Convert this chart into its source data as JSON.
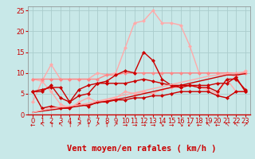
{
  "x": [
    0,
    1,
    2,
    3,
    4,
    5,
    6,
    7,
    8,
    9,
    10,
    11,
    12,
    13,
    14,
    15,
    16,
    17,
    18,
    19,
    20,
    21,
    22,
    23
  ],
  "series": [
    {
      "name": "light_pink_rafales",
      "color": "#ffaaaa",
      "linewidth": 1.0,
      "markersize": 2.5,
      "y": [
        8.5,
        8.0,
        12.0,
        8.5,
        8.5,
        8.5,
        8.5,
        10.0,
        9.5,
        10.0,
        16.0,
        22.0,
        22.5,
        25.0,
        22.0,
        22.0,
        21.5,
        16.5,
        10.0,
        10.0,
        10.0,
        10.0,
        9.0,
        10.5
      ]
    },
    {
      "name": "light_pink_low",
      "color": "#ffaaaa",
      "linewidth": 1.0,
      "markersize": 2.5,
      "y": [
        3.0,
        8.0,
        5.5,
        2.5,
        1.5,
        3.0,
        4.0,
        3.0,
        3.5,
        4.0,
        5.5,
        5.0,
        5.5,
        5.0,
        6.0,
        6.5,
        6.5,
        7.0,
        6.5,
        6.0,
        5.0,
        8.5,
        5.5,
        5.5
      ]
    },
    {
      "name": "medium_pink_rafales",
      "color": "#ff8888",
      "linewidth": 1.0,
      "markersize": 2.5,
      "y": [
        8.5,
        8.5,
        8.5,
        8.5,
        8.5,
        8.5,
        8.5,
        8.5,
        9.5,
        9.5,
        10.0,
        10.0,
        10.0,
        10.0,
        10.0,
        10.0,
        10.0,
        10.0,
        10.0,
        10.0,
        10.0,
        10.0,
        10.0,
        10.0
      ]
    },
    {
      "name": "dark_red_rafales",
      "color": "#cc0000",
      "linewidth": 1.0,
      "markersize": 2.5,
      "y": [
        5.5,
        6.0,
        6.5,
        6.5,
        3.0,
        6.0,
        7.0,
        7.5,
        8.0,
        9.5,
        10.5,
        10.0,
        15.0,
        13.0,
        8.5,
        7.0,
        6.5,
        7.0,
        6.5,
        6.5,
        5.5,
        8.5,
        8.5,
        6.0
      ]
    },
    {
      "name": "dark_red_moyen_high",
      "color": "#cc0000",
      "linewidth": 1.0,
      "markersize": 2.5,
      "y": [
        5.5,
        5.5,
        7.0,
        4.0,
        3.0,
        4.5,
        5.0,
        7.5,
        7.5,
        7.5,
        7.5,
        8.0,
        8.5,
        8.0,
        7.5,
        7.0,
        7.0,
        7.0,
        7.0,
        7.0,
        7.5,
        7.5,
        9.0,
        5.5
      ]
    },
    {
      "name": "dark_red_moyen_low",
      "color": "#cc0000",
      "linewidth": 1.0,
      "markersize": 2.5,
      "y": [
        5.5,
        1.5,
        2.0,
        1.5,
        1.5,
        2.5,
        2.0,
        3.0,
        3.0,
        3.5,
        3.5,
        4.0,
        4.0,
        4.5,
        4.5,
        5.0,
        5.5,
        5.5,
        5.5,
        5.5,
        4.5,
        4.0,
        5.5,
        5.5
      ]
    },
    {
      "name": "linear_high",
      "color": "#cc0000",
      "linewidth": 1.0,
      "markersize": 0,
      "y": [
        0.5,
        0.8,
        1.1,
        1.4,
        1.7,
        2.0,
        2.3,
        2.8,
        3.2,
        3.6,
        4.0,
        4.5,
        5.0,
        5.5,
        6.0,
        6.5,
        7.0,
        7.5,
        8.0,
        8.5,
        9.0,
        9.5,
        9.5,
        9.8
      ]
    },
    {
      "name": "linear_low",
      "color": "#ffaaaa",
      "linewidth": 1.0,
      "markersize": 0,
      "y": [
        0.5,
        1.0,
        1.5,
        1.8,
        2.0,
        2.3,
        2.7,
        3.2,
        3.7,
        4.2,
        4.7,
        5.2,
        5.7,
        6.2,
        6.7,
        7.2,
        7.7,
        8.2,
        8.7,
        9.2,
        9.5,
        9.8,
        10.0,
        10.2
      ]
    }
  ],
  "xlabel": "Vent moyen/en rafales ( km/h )",
  "xlim": [
    -0.5,
    23.5
  ],
  "ylim": [
    0,
    26
  ],
  "yticks": [
    0,
    5,
    10,
    15,
    20,
    25
  ],
  "xticks": [
    0,
    1,
    2,
    3,
    4,
    5,
    6,
    7,
    8,
    9,
    10,
    11,
    12,
    13,
    14,
    15,
    16,
    17,
    18,
    19,
    20,
    21,
    22,
    23
  ],
  "bg_color": "#c8e8e8",
  "grid_color": "#aacccc",
  "xlabel_color": "#cc0000",
  "xlabel_fontsize": 7.5,
  "tick_color": "#cc0000",
  "tick_fontsize": 6,
  "arrow_chars": [
    "←",
    "↖",
    "↑",
    "↖",
    "↑",
    "↗",
    "↑",
    "↗",
    "↑",
    "↗",
    "→",
    "→",
    "→",
    "→",
    "↘",
    "→",
    "↘",
    "↙",
    "←",
    "↖",
    "←",
    "↖",
    "↖",
    "↗"
  ]
}
